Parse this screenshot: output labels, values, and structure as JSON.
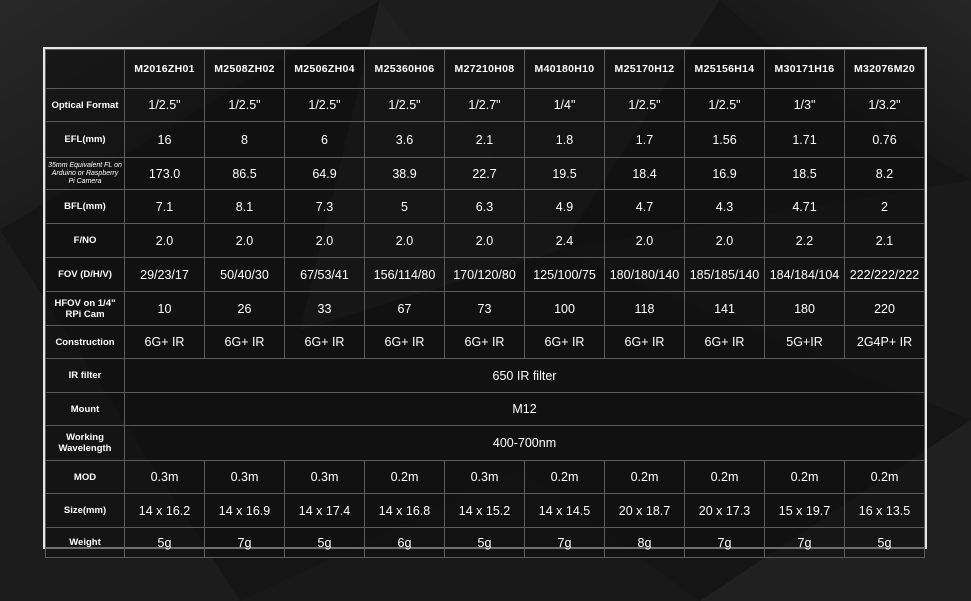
{
  "models": [
    "M2016ZH01",
    "M2508ZH02",
    "M2506ZH04",
    "M25360H06",
    "M27210H08",
    "M40180H10",
    "M25170H12",
    "M25156H14",
    "M30171H16",
    "M32076M20"
  ],
  "rows": [
    {
      "label": "Optical Format",
      "values": [
        "1/2.5\"",
        "1/2.5\"",
        "1/2.5\"",
        "1/2.5\"",
        "1/2.7\"",
        "1/4\"",
        "1/2.5\"",
        "1/2.5\"",
        "1/3\"",
        "1/3.2\""
      ]
    },
    {
      "label": "EFL(mm)",
      "values": [
        "16",
        "8",
        "6",
        "3.6",
        "2.1",
        "1.8",
        "1.7",
        "1.56",
        "1.71",
        "0.76"
      ]
    },
    {
      "label": "35mm Equivalent FL on Arduino or Raspberry Pi Camera",
      "small": true,
      "values": [
        "173.0",
        "86.5",
        "64.9",
        "38.9",
        "22.7",
        "19.5",
        "18.4",
        "16.9",
        "18.5",
        "8.2"
      ]
    },
    {
      "label": "BFL(mm)",
      "values": [
        "7.1",
        "8.1",
        "7.3",
        "5",
        "6.3",
        "4.9",
        "4.7",
        "4.3",
        "4.71",
        "2"
      ]
    },
    {
      "label": "F/NO",
      "values": [
        "2.0",
        "2.0",
        "2.0",
        "2.0",
        "2.0",
        "2.4",
        "2.0",
        "2.0",
        "2.2",
        "2.1"
      ]
    },
    {
      "label": "FOV (D/H/V)",
      "values": [
        "29/23/17",
        "50/40/30",
        "67/53/41",
        "156/114/80",
        "170/120/80",
        "125/100/75",
        "180/180/140",
        "185/185/140",
        "184/184/104",
        "222/222/222"
      ]
    },
    {
      "label": "HFOV on 1/4\" RPi Cam",
      "values": [
        "10",
        "26",
        "33",
        "67",
        "73",
        "100",
        "118",
        "141",
        "180",
        "220"
      ]
    },
    {
      "label": "Construction",
      "values": [
        "6G+ IR",
        "6G+ IR",
        "6G+ IR",
        "6G+ IR",
        "6G+ IR",
        "6G+ IR",
        "6G+ IR",
        "6G+ IR",
        "5G+IR",
        "2G4P+ IR"
      ]
    },
    {
      "label": "IR filter",
      "span": "650 IR filter"
    },
    {
      "label": "Mount",
      "span": "M12"
    },
    {
      "label": "Working Wavelength",
      "span": "400-700nm"
    },
    {
      "label": "MOD",
      "values": [
        "0.3m",
        "0.3m",
        "0.3m",
        "0.2m",
        "0.3m",
        "0.2m",
        "0.2m",
        "0.2m",
        "0.2m",
        "0.2m"
      ]
    },
    {
      "label": "Size(mm)",
      "values": [
        "14 x 16.2",
        "14 x 16.9",
        "14 x 17.4",
        "14 x 16.8",
        "14 x 15.2",
        "14 x 14.5",
        "20 x 18.7",
        "20 x 17.3",
        "15 x 19.7",
        "16 x 13.5"
      ]
    },
    {
      "label": "Weight",
      "values": [
        "5g",
        "7g",
        "5g",
        "6g",
        "5g",
        "7g",
        "8g",
        "7g",
        "7g",
        "5g"
      ]
    }
  ]
}
